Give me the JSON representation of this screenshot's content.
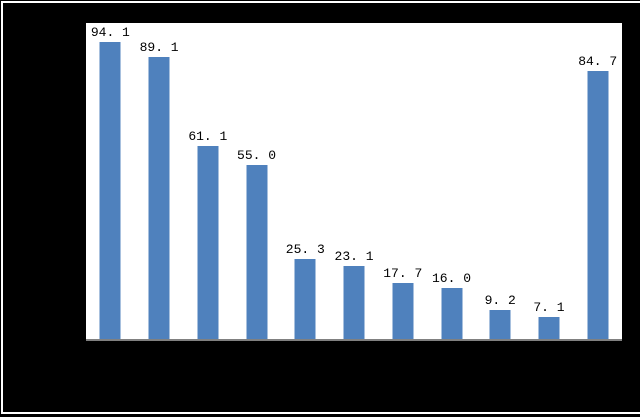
{
  "chart_data": {
    "type": "bar",
    "title": "",
    "values": [
      94.1,
      89.1,
      61.1,
      55.0,
      25.3,
      23.1,
      17.7,
      16.0,
      9.2,
      7.1,
      84.7
    ],
    "bar_labels": [
      "94. 1",
      "89. 1",
      "61. 1",
      "55. 0",
      "25. 3",
      "23. 1",
      "17. 7",
      "16. 0",
      "9. 2",
      "7. 1",
      "84. 7"
    ],
    "xlabel": "",
    "ylabel": "",
    "ylim": [
      0,
      100
    ],
    "grid": false,
    "legend": false,
    "layout": {
      "legend_position": "none",
      "data_labels": "above-bars"
    },
    "colors": {
      "bar_fill": "#4F81BD",
      "axis_line": "#808080",
      "plot_background": "#FFFFFF",
      "surround_background": "#000000",
      "frame_border": "#FFFFFF",
      "label_text": "#000000"
    }
  }
}
